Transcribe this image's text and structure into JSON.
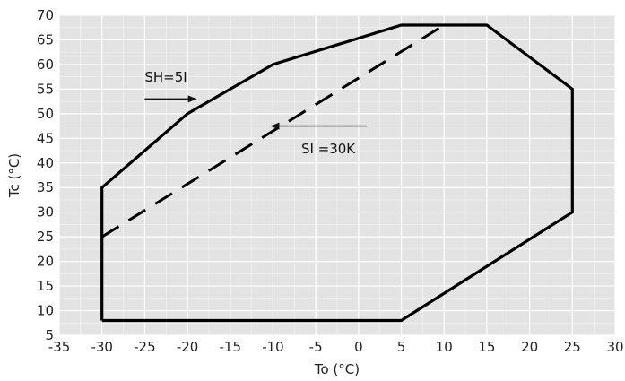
{
  "chart_data": {
    "type": "line",
    "xlabel": "To (°C)",
    "ylabel": "Tc (°C)",
    "xlim": [
      -35,
      30
    ],
    "ylim": [
      5,
      70
    ],
    "x_ticks": [
      "-35",
      "-30",
      "-25",
      "-20",
      "-15",
      "-10",
      "-5",
      "0",
      "5",
      "10",
      "15",
      "20",
      "25",
      "30"
    ],
    "y_ticks": [
      "5",
      "10",
      "15",
      "20",
      "25",
      "30",
      "35",
      "40",
      "45",
      "50",
      "55",
      "60",
      "65",
      "70"
    ],
    "grid": true,
    "series": [
      {
        "style": "solid",
        "x": [
          -30,
          -30,
          -20,
          -10,
          5,
          15,
          25,
          25,
          5,
          -30
        ],
        "y": [
          8,
          35,
          50,
          60,
          68,
          68,
          55,
          30,
          8,
          8
        ]
      },
      {
        "style": "dashed",
        "x": [
          -30,
          10
        ],
        "y": [
          25,
          68
        ]
      }
    ],
    "annotations": [
      {
        "text": "SH=5I",
        "x": -25,
        "y": 56.5,
        "arrow_from": [
          -25,
          53
        ],
        "arrow_to": [
          -19,
          53
        ]
      },
      {
        "text": "SI =30K",
        "x": -6.7,
        "y": 42,
        "arrow_from": [
          1,
          47.5
        ],
        "arrow_to": [
          -10.2,
          47.5
        ]
      }
    ]
  }
}
